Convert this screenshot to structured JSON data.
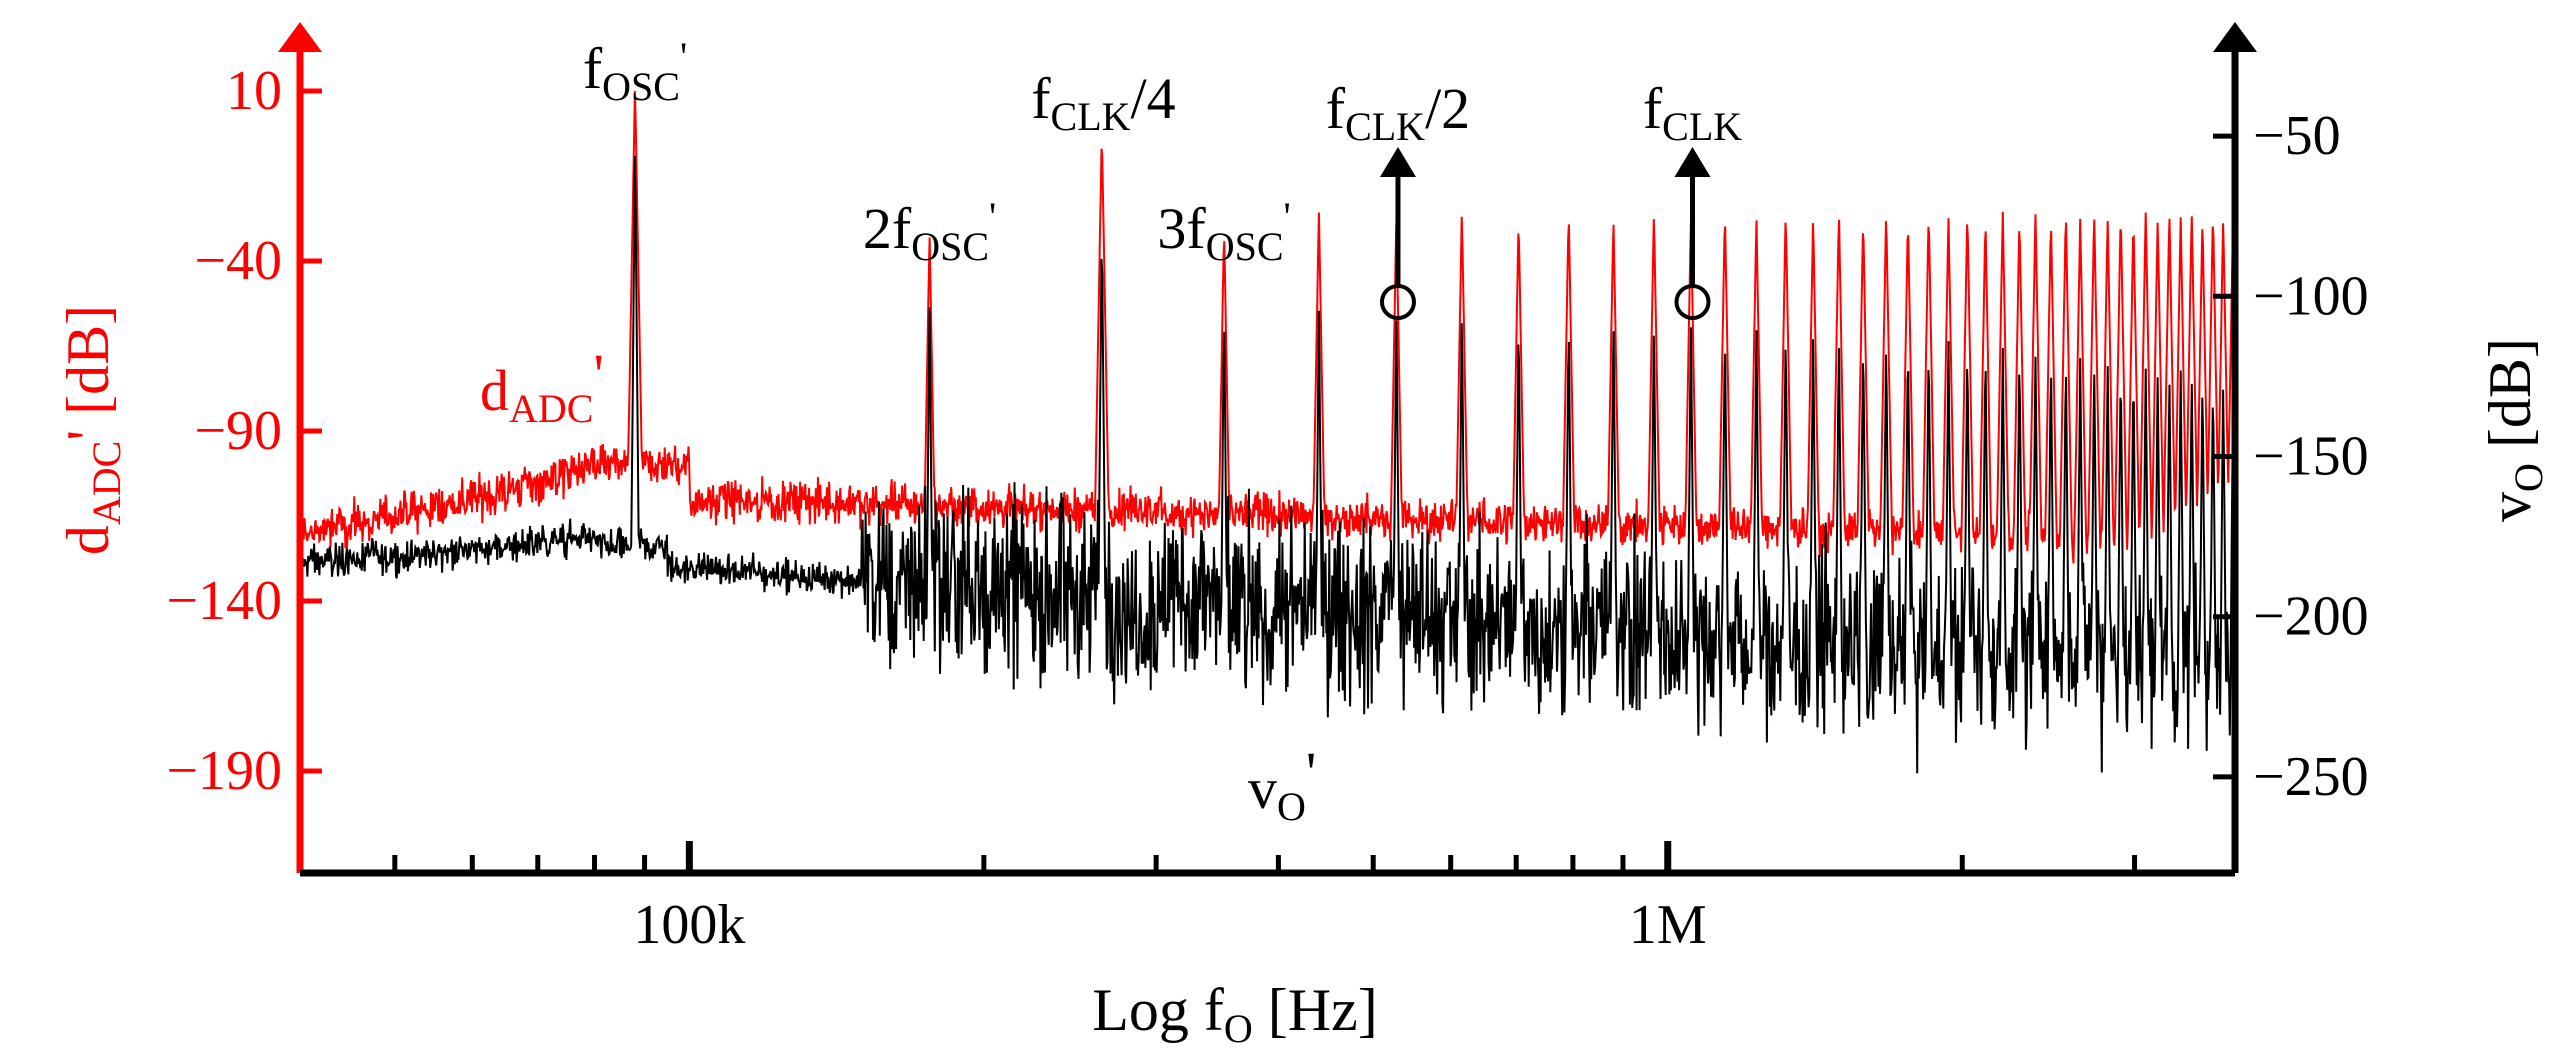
{
  "chart_data": {
    "type": "line",
    "title": "",
    "xlabel": "Log f",
    "xlabel_sub": "O",
    "xlabel_unit": " [Hz]",
    "xscale": "log",
    "xlim": [
      40000,
      3800000
    ],
    "x_tick_labels": [
      {
        "value": 100000,
        "label": "100k"
      },
      {
        "value": 1000000,
        "label": "1M"
      }
    ],
    "ylabel_left": "d",
    "ylabel_left_sub": "ADC",
    "ylabel_left_unit": "' [dB]",
    "ylim_left": [
      -220,
      25
    ],
    "yticks_left": [
      10,
      -40,
      -90,
      -140,
      -190
    ],
    "ylabel_right": "v",
    "ylabel_right_sub": "O",
    "ylabel_right_unit": " [dB]",
    "ylim_right": [
      -280,
      -20
    ],
    "yticks_right": [
      -50,
      -100,
      -150,
      -200,
      -250
    ],
    "colors": {
      "left_axis": "#ff0000",
      "right_axis": "#000000"
    },
    "grid": false,
    "osc_frequency_hz": 88000,
    "clk_frequency_hz": 1060000,
    "series": [
      {
        "name": "d",
        "name_sub": "ADC",
        "name_suffix": "'",
        "axis": "left",
        "color": "#ff0000",
        "description_points": {
          "x": [
            40000,
            60000,
            80000,
            88000,
            100000,
            170000,
            265000,
            350000,
            530000,
            1000000,
            3800000
          ],
          "y": [
            -120,
            -110,
            -95,
            12,
            -110,
            -110,
            -105,
            -120,
            -125,
            -120,
            -115
          ]
        }
      },
      {
        "name": "v",
        "name_sub": "O",
        "name_suffix": "'",
        "axis": "right",
        "color": "#000000",
        "description_points": {
          "x": [
            40000,
            60000,
            80000,
            88000,
            100000,
            170000,
            265000,
            350000,
            530000,
            1000000,
            3800000
          ],
          "y": [
            -183,
            -182,
            -175,
            -52,
            -185,
            -200,
            -205,
            -205,
            -205,
            -200,
            -200
          ]
        }
      }
    ],
    "annotations": [
      {
        "id": "fosc",
        "base": "f",
        "sub": "OSC",
        "sup": "'",
        "x": 88000
      },
      {
        "id": "2fosc",
        "pre": "2f",
        "sub": "OSC",
        "sup": "'",
        "x": 176000
      },
      {
        "id": "fclk4",
        "base": "f",
        "sub": "CLK",
        "post": "/4",
        "x": 265000
      },
      {
        "id": "3fosc",
        "pre": "3f",
        "sub": "OSC",
        "sup": "'",
        "x": 352000
      },
      {
        "id": "fclk2",
        "base": "f",
        "sub": "CLK",
        "post": "/2",
        "x": 530000,
        "arrow": true
      },
      {
        "id": "fclk",
        "base": "f",
        "sub": "CLK",
        "post": "",
        "x": 1060000,
        "arrow": true
      }
    ]
  }
}
